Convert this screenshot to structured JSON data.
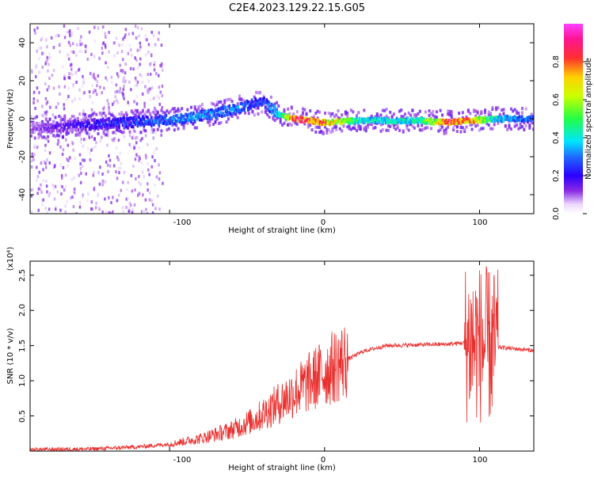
{
  "title": "C2E4.2023.129.22.15.G05",
  "chart_data": [
    {
      "type": "heatmap",
      "xlabel": "Height of straight line (km)",
      "ylabel": "Frequency (Hz)",
      "xlim": [
        -190,
        135
      ],
      "ylim": [
        -50,
        50
      ],
      "x_ticks": [
        -100,
        0,
        100
      ],
      "y_ticks": [
        -40,
        -20,
        0,
        20,
        40
      ],
      "colorbar": {
        "label": "Normalized spectral amplitude",
        "range": [
          0,
          1
        ],
        "ticks": [
          "0.0",
          "0.2",
          "0.4",
          "0.6",
          "0.8"
        ]
      },
      "ridge": [
        {
          "x": -190,
          "y": -5,
          "a": 0.15
        },
        {
          "x": -170,
          "y": -4,
          "a": 0.2
        },
        {
          "x": -150,
          "y": -3,
          "a": 0.25
        },
        {
          "x": -130,
          "y": -2,
          "a": 0.3
        },
        {
          "x": -110,
          "y": -1,
          "a": 0.35
        },
        {
          "x": -90,
          "y": 0,
          "a": 0.38
        },
        {
          "x": -70,
          "y": 3,
          "a": 0.38
        },
        {
          "x": -55,
          "y": 6,
          "a": 0.35
        },
        {
          "x": -40,
          "y": 9,
          "a": 0.3
        },
        {
          "x": -30,
          "y": 2,
          "a": 0.45
        },
        {
          "x": -20,
          "y": 0,
          "a": 0.95
        },
        {
          "x": -10,
          "y": -1,
          "a": 0.9
        },
        {
          "x": 0,
          "y": -2,
          "a": 0.85
        },
        {
          "x": 20,
          "y": -1,
          "a": 0.5
        },
        {
          "x": 40,
          "y": -1,
          "a": 0.45
        },
        {
          "x": 60,
          "y": -1,
          "a": 0.5
        },
        {
          "x": 80,
          "y": -2,
          "a": 0.9
        },
        {
          "x": 95,
          "y": -1,
          "a": 0.85
        },
        {
          "x": 110,
          "y": 0,
          "a": 0.45
        },
        {
          "x": 135,
          "y": 0,
          "a": 0.3
        }
      ]
    },
    {
      "type": "line",
      "xlabel": "Height of straight line (km)",
      "ylabel": "SNR (10 * v/v)",
      "y_multiplier": "(x10⁴)",
      "xlim": [
        -190,
        135
      ],
      "ylim": [
        0,
        2.7
      ],
      "x_ticks": [
        -100,
        0,
        100
      ],
      "y_ticks": [
        "0.5",
        "1.0",
        "1.5",
        "2.0",
        "2.5"
      ],
      "color": "#e8302e",
      "envelope": [
        {
          "x": -190,
          "y": 0.02
        },
        {
          "x": -150,
          "y": 0.03
        },
        {
          "x": -120,
          "y": 0.06
        },
        {
          "x": -100,
          "y": 0.1
        },
        {
          "x": -80,
          "y": 0.18
        },
        {
          "x": -60,
          "y": 0.3
        },
        {
          "x": -45,
          "y": 0.45
        },
        {
          "x": -35,
          "y": 0.6
        },
        {
          "x": -25,
          "y": 0.75
        },
        {
          "x": -15,
          "y": 0.9
        },
        {
          "x": -5,
          "y": 1.05
        },
        {
          "x": 10,
          "y": 1.25
        },
        {
          "x": 25,
          "y": 1.42
        },
        {
          "x": 40,
          "y": 1.5
        },
        {
          "x": 60,
          "y": 1.51
        },
        {
          "x": 80,
          "y": 1.52
        },
        {
          "x": 95,
          "y": 1.55
        },
        {
          "x": 105,
          "y": 1.5
        },
        {
          "x": 115,
          "y": 1.47
        },
        {
          "x": 135,
          "y": 1.43
        }
      ]
    }
  ]
}
